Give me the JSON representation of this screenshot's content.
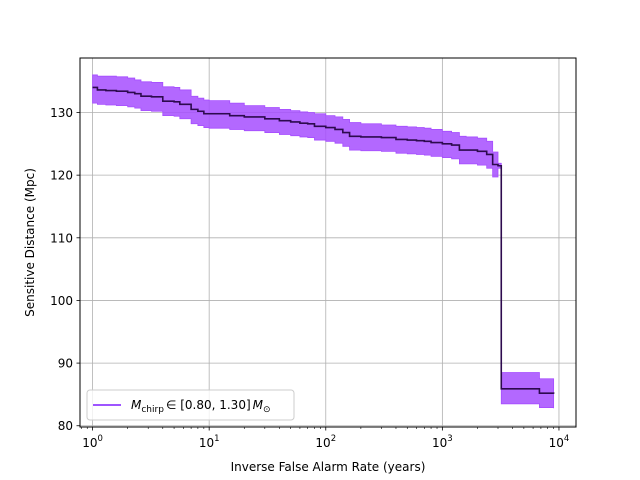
{
  "chart_data": {
    "type": "line",
    "xscale": "log",
    "xlabel": "Inverse False Alarm Rate (years)",
    "ylabel": "Sensitive Distance (Mpc)",
    "xlim": [
      0.78,
      14000
    ],
    "ylim": [
      79.8,
      138.7
    ],
    "grid": true,
    "legend_position": "lower-left",
    "x_ticks": [
      {
        "value": 1,
        "base": "10",
        "exp": "0"
      },
      {
        "value": 10,
        "base": "10",
        "exp": "1"
      },
      {
        "value": 100,
        "base": "10",
        "exp": "2"
      },
      {
        "value": 1000,
        "base": "10",
        "exp": "3"
      },
      {
        "value": 10000,
        "base": "10",
        "exp": "4"
      }
    ],
    "y_ticks": [
      "80",
      "90",
      "100",
      "110",
      "120",
      "130"
    ],
    "series": [
      {
        "legend_math": "M_chirp ∈ [0.80, 1.30] M_⊙",
        "legend_parts": {
          "M": "M",
          "sub": "chirp",
          "range": "∈ [0.80, 1.30]",
          "M2": "M",
          "sub2": "⊙"
        },
        "line_color": "#2d0a4e",
        "band_color": "#a64dff",
        "legend_color": "#7f1dff",
        "x": [
          1.0,
          1.1,
          1.3,
          1.6,
          2.0,
          2.3,
          2.6,
          3.2,
          4.0,
          5.0,
          5.6,
          7.0,
          8.0,
          9.0,
          10,
          15,
          20,
          30,
          40,
          50,
          60,
          70,
          80,
          100,
          120,
          140,
          160,
          200,
          300,
          400,
          500,
          600,
          700,
          800,
          1000,
          1200,
          1400,
          1600,
          2000,
          2400,
          2700,
          3000,
          3200,
          4000,
          5000,
          6000,
          6800,
          7200,
          9000
        ],
        "y": [
          134.0,
          133.6,
          133.5,
          133.4,
          133.2,
          133.0,
          132.6,
          132.5,
          131.8,
          131.7,
          131.3,
          130.5,
          130.2,
          129.8,
          129.8,
          129.5,
          129.3,
          129.0,
          128.7,
          128.5,
          128.3,
          128.2,
          127.8,
          127.6,
          127.3,
          126.8,
          126.2,
          126.1,
          126.0,
          125.7,
          125.6,
          125.5,
          125.4,
          125.2,
          125.0,
          124.8,
          124.0,
          124.0,
          123.8,
          123.3,
          121.7,
          121.5,
          85.9,
          85.9,
          85.9,
          85.9,
          85.2,
          85.2,
          85.1
        ],
        "y_upper": [
          136.0,
          135.8,
          135.8,
          135.7,
          135.5,
          135.2,
          134.9,
          134.8,
          134.1,
          134.0,
          133.6,
          132.6,
          132.3,
          132.0,
          131.9,
          131.5,
          131.1,
          130.8,
          130.5,
          130.3,
          130.1,
          130.0,
          129.8,
          129.5,
          129.3,
          128.9,
          128.4,
          128.2,
          128.0,
          127.8,
          127.7,
          127.6,
          127.5,
          127.3,
          127.0,
          126.8,
          126.2,
          126.1,
          125.9,
          125.4,
          123.7,
          121.9,
          88.5,
          88.5,
          88.5,
          88.5,
          87.5,
          87.5,
          87.4
        ],
        "y_lower": [
          131.5,
          131.3,
          131.2,
          131.1,
          130.9,
          130.7,
          130.3,
          130.2,
          129.5,
          129.4,
          129.0,
          128.2,
          127.9,
          127.6,
          127.5,
          127.3,
          127.1,
          126.8,
          126.5,
          126.3,
          126.1,
          126.0,
          125.6,
          125.4,
          125.1,
          124.6,
          124.0,
          123.9,
          123.8,
          123.5,
          123.4,
          123.3,
          123.2,
          123.0,
          122.8,
          122.6,
          121.8,
          121.8,
          121.6,
          121.1,
          119.7,
          121.1,
          83.5,
          83.5,
          83.5,
          83.5,
          82.9,
          82.9,
          82.8
        ]
      }
    ]
  }
}
